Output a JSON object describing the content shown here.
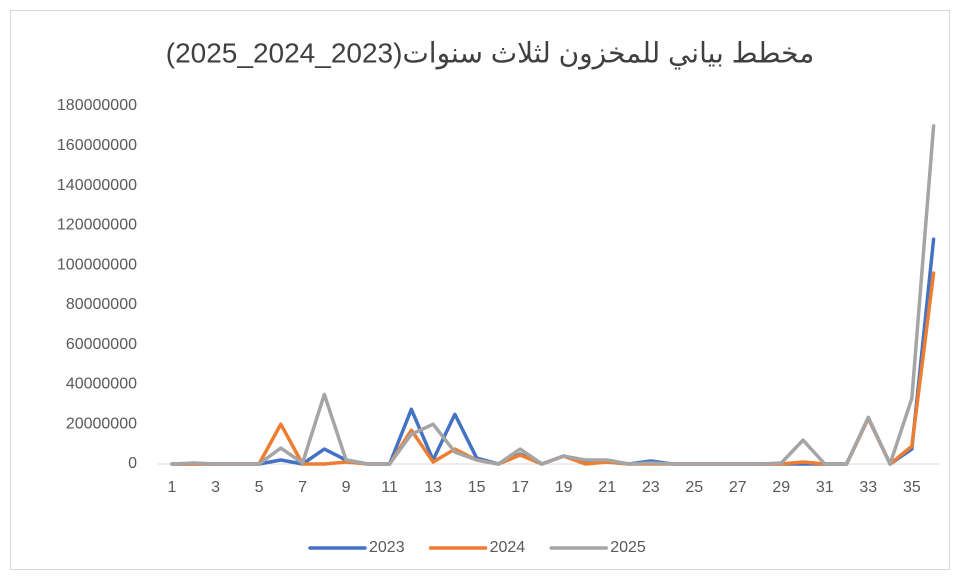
{
  "chart_data": {
    "type": "line",
    "title": "مخطط بياني للمخزون لثلاث سنوات(2023_2024_2025)",
    "categories": [
      "1",
      null,
      "3",
      null,
      "5",
      null,
      "7",
      null,
      "9",
      null,
      "11",
      null,
      "13",
      null,
      "15",
      null,
      "17",
      null,
      "19",
      null,
      "21",
      null,
      "23",
      null,
      "25",
      null,
      "27",
      null,
      "29",
      null,
      "31",
      null,
      "33",
      null,
      "35",
      null
    ],
    "series": [
      {
        "name": "2023",
        "color": "#4472c4",
        "values": [
          0,
          0,
          0,
          0,
          0,
          2000000,
          0,
          7500000,
          2000000,
          0,
          0,
          27500000,
          2000000,
          25000000,
          3000000,
          0,
          5000000,
          0,
          4000000,
          1000000,
          1000000,
          0,
          1500000,
          0,
          0,
          0,
          0,
          0,
          0,
          0,
          0,
          0,
          23000000,
          0,
          7500000,
          113000000
        ]
      },
      {
        "name": "2024",
        "color": "#ed7d31",
        "values": [
          0,
          0,
          0,
          0,
          0,
          20000000,
          0,
          0,
          1000000,
          0,
          0,
          17000000,
          1000000,
          7500000,
          2000000,
          0,
          4500000,
          0,
          4000000,
          0,
          1000000,
          0,
          0,
          0,
          0,
          0,
          0,
          0,
          0,
          1000000,
          0,
          0,
          23000000,
          0,
          9000000,
          96000000
        ]
      },
      {
        "name": "2025",
        "color": "#a5a5a5",
        "values": [
          0,
          500000,
          0,
          0,
          0,
          8000000,
          500000,
          35000000,
          2000000,
          0,
          0,
          15000000,
          20000000,
          6000000,
          2000000,
          0,
          7500000,
          0,
          4000000,
          2000000,
          2000000,
          0,
          500000,
          0,
          0,
          0,
          0,
          0,
          500000,
          12000000,
          0,
          0,
          23500000,
          0,
          33000000,
          170000000
        ]
      }
    ],
    "ylim": [
      0,
      180000000
    ],
    "yticks": [
      0,
      20000000,
      40000000,
      60000000,
      80000000,
      100000000,
      120000000,
      140000000,
      160000000,
      180000000
    ],
    "grid": false,
    "legend": "bottom"
  }
}
